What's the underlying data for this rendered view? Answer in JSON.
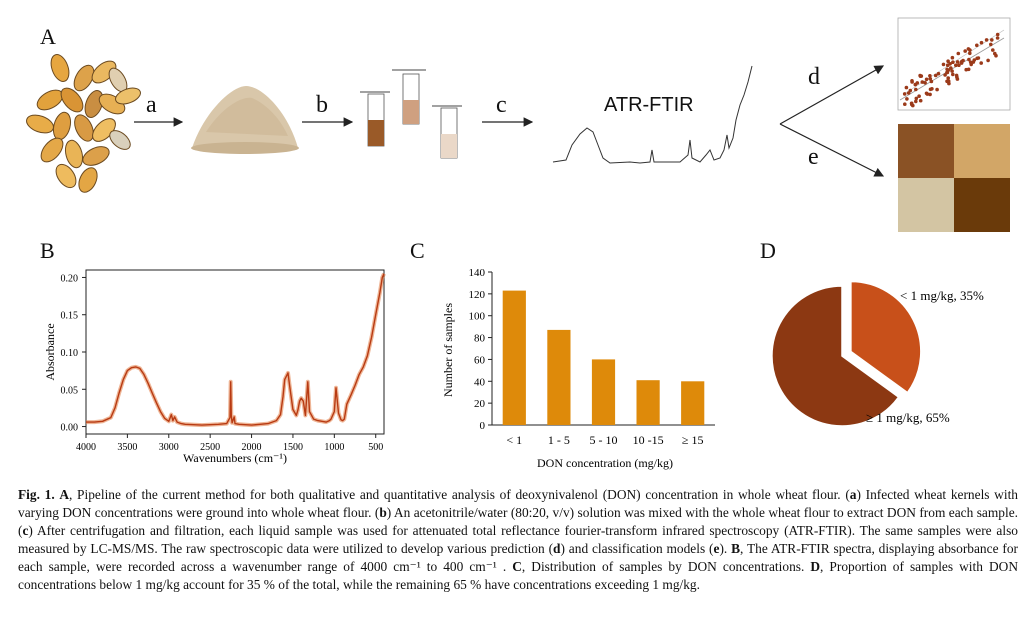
{
  "panelA": {
    "letter": "A",
    "steps": [
      "a",
      "b",
      "c",
      "d",
      "e"
    ],
    "atr_label": "ATR-FTIR",
    "heatmap_colors": [
      "#8a5225",
      "#d2a667",
      "#d3c5a3",
      "#6a3a0a"
    ]
  },
  "panelB": {
    "letter": "B",
    "chart_data": {
      "type": "line",
      "title": "",
      "xlabel": "Wavenumbers (cm⁻¹)",
      "ylabel": "Absorbance",
      "xlim": [
        4000,
        400
      ],
      "ylim": [
        -0.01,
        0.21
      ],
      "x_ticks": [
        "4000",
        "3500",
        "3000",
        "2500",
        "2000",
        "1500",
        "1000",
        "500"
      ],
      "y_ticks": [
        "0.00",
        "0.05",
        "0.10",
        "0.15",
        "0.20"
      ],
      "series": [
        {
          "name": "spectra",
          "color": "#b83a12",
          "x": [
            4000,
            3900,
            3800,
            3700,
            3650,
            3600,
            3550,
            3500,
            3450,
            3400,
            3350,
            3300,
            3250,
            3200,
            3150,
            3100,
            3050,
            3000,
            2970,
            2950,
            2930,
            2900,
            2850,
            2800,
            2600,
            2400,
            2300,
            2260,
            2252,
            2245,
            2235,
            2210,
            2200,
            2150,
            2000,
            1800,
            1700,
            1650,
            1620,
            1600,
            1560,
            1540,
            1500,
            1460,
            1440,
            1420,
            1400,
            1375,
            1350,
            1320,
            1300,
            1250,
            1200,
            1150,
            1100,
            1060,
            1040,
            1000,
            980,
            950,
            920,
            900,
            880,
            850,
            800,
            750,
            700,
            650,
            600,
            550,
            500,
            450,
            420,
            400
          ],
          "values": [
            0.006,
            0.006,
            0.007,
            0.012,
            0.025,
            0.045,
            0.063,
            0.075,
            0.079,
            0.08,
            0.078,
            0.07,
            0.058,
            0.045,
            0.032,
            0.02,
            0.011,
            0.007,
            0.016,
            0.008,
            0.013,
            0.006,
            0.004,
            0.003,
            0.002,
            0.003,
            0.004,
            0.012,
            0.06,
            0.015,
            0.005,
            0.013,
            0.004,
            0.003,
            0.002,
            0.004,
            0.008,
            0.016,
            0.04,
            0.063,
            0.072,
            0.055,
            0.023,
            0.015,
            0.022,
            0.034,
            0.038,
            0.034,
            0.015,
            0.06,
            0.02,
            0.01,
            0.008,
            0.007,
            0.006,
            0.008,
            0.01,
            0.02,
            0.052,
            0.018,
            0.009,
            0.008,
            0.01,
            0.03,
            0.042,
            0.055,
            0.07,
            0.08,
            0.095,
            0.12,
            0.15,
            0.18,
            0.2,
            0.205
          ]
        }
      ]
    }
  },
  "panelC": {
    "letter": "C",
    "chart_data": {
      "type": "bar",
      "title": "",
      "categories": [
        "< 1",
        "1 - 5",
        "5 - 10",
        "10 -15",
        "≥ 15"
      ],
      "values": [
        123,
        87,
        60,
        41,
        40
      ],
      "xlabel": "DON concentration (mg/kg)",
      "ylabel": "Number of samples",
      "ylim": [
        0,
        140
      ],
      "y_ticks": [
        "0",
        "20",
        "40",
        "60",
        "80",
        "100",
        "120",
        "140"
      ],
      "color": "#de8a0a"
    }
  },
  "panelD": {
    "letter": "D",
    "chart_data": {
      "type": "pie",
      "title": "",
      "labels": [
        "< 1 mg/kg, 35%",
        "≥ 1 mg/kg, 65%"
      ],
      "values": [
        35,
        65
      ],
      "colors": [
        "#c8501a",
        "#8c3812"
      ],
      "exploded": [
        true,
        false
      ]
    }
  },
  "caption": {
    "fig_label": "Fig. 1.",
    "A_label": "A",
    "A_text": ", Pipeline of the current method for both qualitative and quantitative analysis of deoxynivalenol (DON) concentration in whole wheat flour. (",
    "a_label": "a",
    "a_text": ") Infected wheat kernels with varying DON concentrations were ground into whole wheat flour. (",
    "b_label": "b",
    "b_text": ") An acetonitrile/water (80:20, v/v) solution was mixed with the whole wheat flour to extract DON from each sample. (",
    "c_label": "c",
    "c_text": ") After centrifugation and filtration, each liquid sample was used for attenuated total reflectance fourier-transform infrared spectroscopy (ATR-FTIR). The same samples were also measured by LC-MS/MS. The raw spectroscopic data were utilized to develop various prediction (",
    "d_label": "d",
    "d_text": ") and classification models (",
    "e_label": "e",
    "e_text": "). ",
    "B_label": "B",
    "B_text": ", The ATR-FTIR spectra, displaying absorbance for each sample, were recorded across a wavenumber range of 4000 cm⁻¹ to 400 cm⁻¹ . ",
    "C_label": "C",
    "C_text": ", Distribution of samples by DON concentrations. ",
    "D_label": "D",
    "D_text": ", Proportion of samples with DON concentrations below 1 mg/kg account for 35 % of the total, while the remaining 65 % have concentrations exceeding 1 mg/kg."
  }
}
